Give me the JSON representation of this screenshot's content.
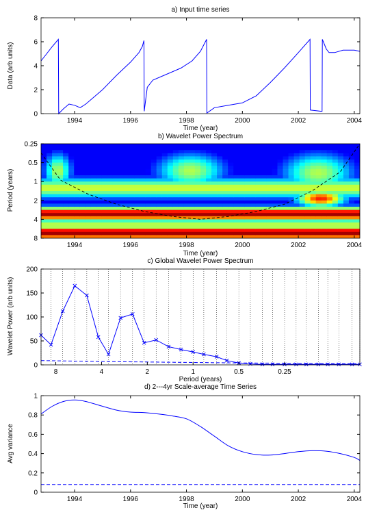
{
  "chart_data": [
    {
      "type": "line",
      "title": "a) Input time series",
      "xlabel": "Time (year)",
      "ylabel": "Data (arb units)",
      "xlim": [
        1992.8,
        2004.2
      ],
      "ylim": [
        0,
        8
      ],
      "xticks": [
        1994,
        1996,
        1998,
        2000,
        2002,
        2004
      ],
      "yticks": [
        0,
        2,
        4,
        6,
        8
      ],
      "grid": false,
      "color": "#0000ff",
      "series": [
        {
          "x": [
            1992.8,
            1993.0,
            1993.2,
            1993.42,
            1993.43,
            1993.6,
            1993.8,
            1994.0,
            1994.2,
            1994.4,
            1995.0,
            1995.5,
            1996.0,
            1996.3,
            1996.42,
            1996.48,
            1996.49,
            1996.6,
            1996.8,
            1997.2,
            1997.8,
            1998.2,
            1998.5,
            1998.72,
            1998.73,
            1999.0,
            1999.5,
            2000.0,
            2000.5,
            2001.0,
            2001.5,
            2002.0,
            2002.42,
            2002.43,
            2002.8,
            2002.85,
            2002.86,
            2003.0,
            2003.1,
            2003.3,
            2003.6,
            2004.0,
            2004.2
          ],
          "y": [
            4.4,
            5.0,
            5.6,
            6.2,
            0.0,
            0.4,
            0.8,
            0.7,
            0.5,
            0.8,
            2.0,
            3.2,
            4.3,
            5.1,
            5.6,
            6.1,
            0.2,
            2.2,
            2.8,
            3.2,
            3.8,
            4.4,
            5.2,
            6.2,
            0.05,
            0.5,
            0.7,
            0.9,
            1.5,
            2.6,
            3.8,
            5.1,
            6.2,
            0.3,
            0.2,
            0.2,
            6.2,
            5.4,
            5.1,
            5.1,
            5.3,
            5.3,
            5.2
          ]
        }
      ]
    },
    {
      "type": "heatmap",
      "title": "b) Wavelet Power Spectrum",
      "xlabel": "Time (year)",
      "ylabel": "Period (years)",
      "xlim": [
        1992.8,
        2004.2
      ],
      "ylim": [
        0.25,
        8
      ],
      "yscale": "log2",
      "y_reversed": true,
      "xticks": [
        1994,
        1996,
        1998,
        2000,
        2002,
        2004
      ],
      "yticks": [
        "0.25",
        "0.5",
        "1",
        "2",
        "4",
        "8"
      ],
      "colormap": "jet",
      "cone_of_influence": {
        "style": "dashed",
        "x": [
          1992.8,
          1993.5,
          1994.5,
          1995.5,
          1996.5,
          1997.5,
          1998.5,
          1999.5,
          2000.5,
          2001.5,
          2002.5,
          2003.5,
          2004.2
        ],
        "y": [
          0.35,
          0.95,
          1.6,
          2.3,
          3.0,
          3.6,
          4.0,
          3.6,
          3.0,
          2.3,
          1.4,
          0.7,
          0.25
        ]
      },
      "bands": [
        {
          "period_range": [
            2.4,
            4.2
          ],
          "level": "maximum",
          "x_range": [
            1992.8,
            2004.2
          ]
        },
        {
          "period_range": [
            5.0,
            8.0
          ],
          "level": "maximum",
          "x_range": [
            1992.8,
            2004.2
          ]
        },
        {
          "period_range": [
            0.35,
            1.3
          ],
          "level": "medium",
          "x_range": [
            1992.9,
            1993.9
          ]
        },
        {
          "period_range": [
            0.35,
            1.3
          ],
          "level": "medium",
          "x_range": [
            1996.9,
            1999.4
          ]
        },
        {
          "period_range": [
            0.35,
            1.5
          ],
          "level": "medium",
          "x_range": [
            2001.4,
            2004.0
          ]
        }
      ]
    },
    {
      "type": "line",
      "title": "c) Global Wavelet Power Spectrum",
      "xlabel": "Period (years)",
      "ylabel": "Wavelet Power (arb units)",
      "xscale": "log2",
      "x_reversed": true,
      "xticks": [
        "8",
        "4",
        "2",
        "1",
        "0.5",
        "0.25"
      ],
      "ylim": [
        0,
        200
      ],
      "yticks": [
        0,
        50,
        100,
        150,
        200
      ],
      "grid": true,
      "marker": "x",
      "series": [
        {
          "style": "solid",
          "x": [
            10.0,
            8.6,
            7.2,
            6.0,
            5.0,
            4.2,
            3.6,
            3.0,
            2.5,
            2.1,
            1.75,
            1.45,
            1.2,
            1.0,
            0.85,
            0.7,
            0.6,
            0.5,
            0.42,
            0.35,
            0.3,
            0.25,
            0.21,
            0.18,
            0.15,
            0.13,
            0.11,
            0.09,
            0.08
          ],
          "y": [
            62,
            42,
            112,
            165,
            145,
            58,
            22,
            98,
            106,
            46,
            52,
            38,
            32,
            27,
            22,
            17,
            9,
            4,
            2,
            1,
            1,
            1,
            1,
            1,
            1,
            1,
            1,
            1,
            1
          ]
        },
        {
          "style": "dashed",
          "x": [
            10.0,
            4.0,
            2.0,
            1.0,
            0.5,
            0.25,
            0.08
          ],
          "y": [
            9,
            7,
            6,
            5,
            4,
            3.5,
            2.5
          ]
        }
      ]
    },
    {
      "type": "line",
      "title": "d) 2---4yr Scale-average Time Series",
      "xlabel": "Time (year)",
      "ylabel": "Avg variance",
      "xlim": [
        1992.8,
        2004.2
      ],
      "ylim": [
        0,
        1
      ],
      "xticks": [
        1994,
        1996,
        1998,
        2000,
        2002,
        2004
      ],
      "yticks": [
        0,
        0.2,
        0.4,
        0.6,
        0.8,
        1
      ],
      "series": [
        {
          "style": "solid",
          "x": [
            1992.8,
            1993.2,
            1993.6,
            1994.0,
            1994.4,
            1995.0,
            1995.5,
            1996.0,
            1996.5,
            1997.0,
            1997.5,
            1998.0,
            1998.5,
            1999.0,
            1999.5,
            2000.0,
            2000.5,
            2001.0,
            2001.5,
            2002.0,
            2002.5,
            2003.0,
            2003.5,
            2004.0,
            2004.2
          ],
          "y": [
            0.81,
            0.89,
            0.94,
            0.955,
            0.94,
            0.89,
            0.85,
            0.83,
            0.825,
            0.81,
            0.79,
            0.76,
            0.68,
            0.58,
            0.48,
            0.42,
            0.39,
            0.385,
            0.4,
            0.42,
            0.43,
            0.425,
            0.4,
            0.36,
            0.33
          ]
        },
        {
          "style": "dashed",
          "x": [
            1992.8,
            2004.2
          ],
          "y": [
            0.08,
            0.08
          ]
        }
      ]
    }
  ]
}
